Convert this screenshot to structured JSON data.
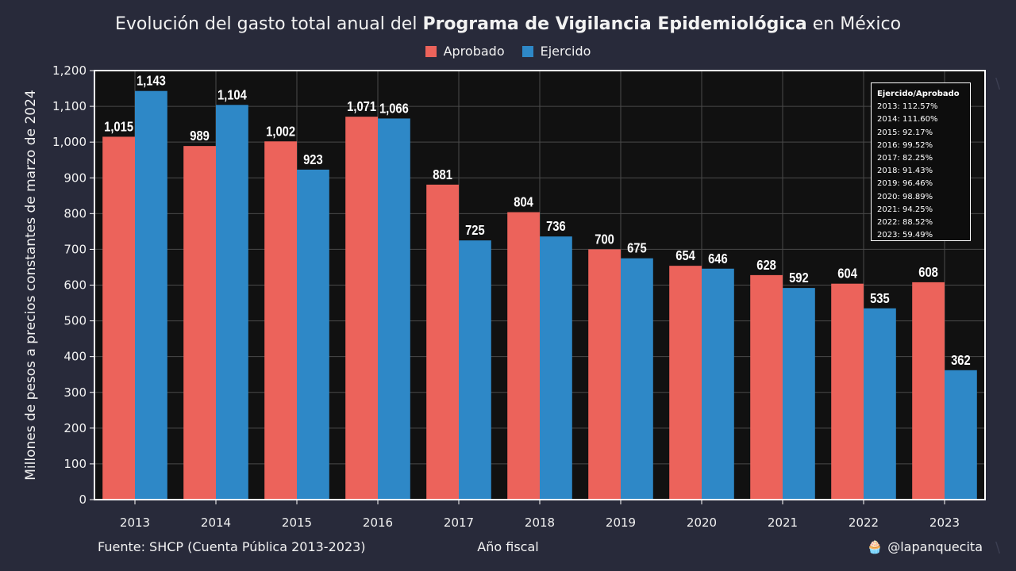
{
  "header": {
    "title_prefix": "Evolución del gasto total anual del ",
    "title_bold": "Programa de Vigilancia Epidemiológica",
    "title_suffix": " en México"
  },
  "legend": [
    {
      "label": "Aprobado",
      "color": "#ec635b"
    },
    {
      "label": "Ejercido",
      "color": "#2e88c7"
    }
  ],
  "footer": {
    "source": "Fuente: SHCP (Cuenta Pública 2013-2023)",
    "handle": "@lapanquecita",
    "handle_icon": "cupcake-icon"
  },
  "ratio_box": {
    "title": "Ejercido/Aprobado",
    "lines": [
      "2013: 112.57%",
      "2014: 111.60%",
      "2015: 92.17%",
      "2016: 99.52%",
      "2017: 82.25%",
      "2018: 91.43%",
      "2019: 96.46%",
      "2020: 98.89%",
      "2021: 94.25%",
      "2022: 88.52%",
      "2023: 59.49%"
    ]
  },
  "chart_data": {
    "type": "bar",
    "title": "Evolución del gasto total anual del Programa de Vigilancia Epidemiológica en México",
    "xlabel": "Año fiscal",
    "ylabel": "Millones de pesos a precios constantes de marzo de 2024",
    "categories": [
      "2013",
      "2014",
      "2015",
      "2016",
      "2017",
      "2018",
      "2019",
      "2020",
      "2021",
      "2022",
      "2023"
    ],
    "series": [
      {
        "name": "Aprobado",
        "color": "#ec635b",
        "values": [
          1015,
          989,
          1002,
          1071,
          881,
          804,
          700,
          654,
          628,
          604,
          608
        ]
      },
      {
        "name": "Ejercido",
        "color": "#2e88c7",
        "values": [
          1143,
          1104,
          923,
          1066,
          725,
          736,
          675,
          646,
          592,
          535,
          362
        ]
      }
    ],
    "ylim": [
      0,
      1200
    ],
    "yticks": [
      0,
      100,
      200,
      300,
      400,
      500,
      600,
      700,
      800,
      900,
      1000,
      1100,
      1200
    ],
    "grid": true,
    "legend_position": "top-center",
    "background": "#111111",
    "grid_color": "#4a4a4a"
  }
}
